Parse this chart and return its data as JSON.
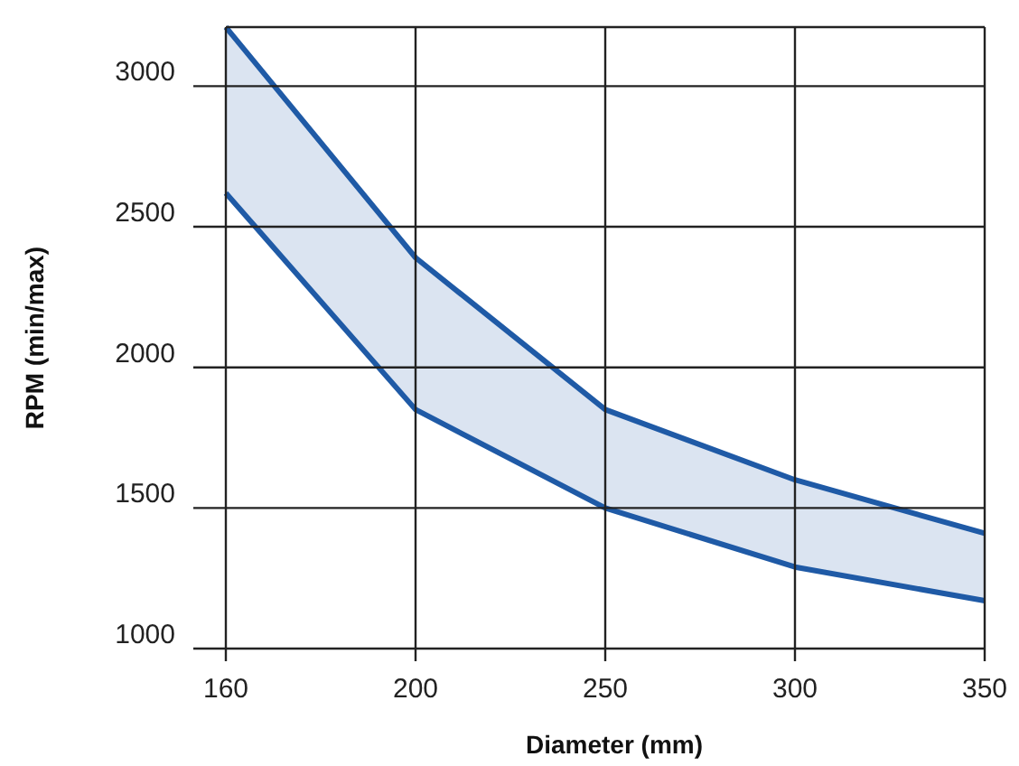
{
  "chart_data": {
    "type": "line",
    "xlabel": "Diameter (mm)",
    "ylabel": "RPM (min/max)",
    "categories": [
      "160",
      "200",
      "250",
      "300",
      "350"
    ],
    "series": [
      {
        "color": "#1f5aa6",
        "values": [
          3210,
          2390,
          1850,
          1600,
          1410
        ],
        "lower": [
          2620,
          1850,
          1500,
          1290,
          1170
        ],
        "upper": [
          3210,
          2390,
          1850,
          1600,
          1410
        ]
      },
      {
        "color": "#1f5aa6",
        "values": [
          2620,
          1850,
          1500,
          1290,
          1170
        ]
      }
    ],
    "ylim": [
      1000,
      3210
    ],
    "yticks": [
      1000,
      1500,
      2000,
      2500,
      3000
    ],
    "grid": true
  }
}
